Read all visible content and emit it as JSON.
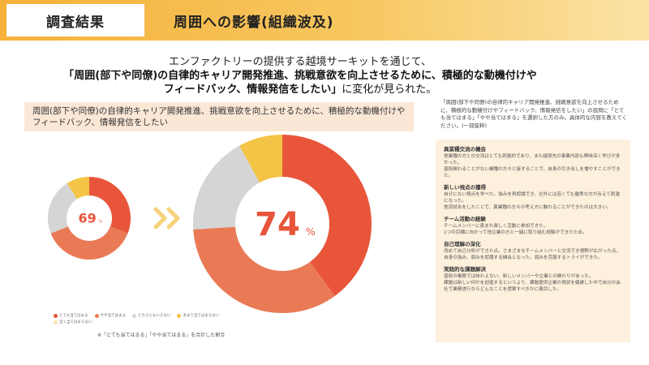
{
  "header": {
    "tag": "調査結果",
    "title": "周囲への影響(組織波及)"
  },
  "lead": {
    "line1": "エンファクトリーの提供する越境サーキットを通じて、",
    "line2": "「周囲(部下や同僚)の自律的キャリア開発推進、挑戦意欲を向上させるために、積極的な動機付けや",
    "line3": "フィードバック、情報発信をしたい」",
    "line3_tail": "に変化が見られた。"
  },
  "question": {
    "text": "周囲(部下や同僚)の自律的キャリア開発推進、挑戦意欲を向上させるために、積極的な動機付けやフィードバック、情報発信をしたい"
  },
  "colors": {
    "strong": "#e8553a",
    "somewhat": "#ea7a56",
    "neutral": "#d5d5d5",
    "little": "#f3c445",
    "none": "#fae3a6",
    "arrow": "#f6d27a",
    "value_text": "#e8553a"
  },
  "chart_data": {
    "type": "pie",
    "categories": [
      "とても当てはまる",
      "やや当てはまる",
      "どちらともいえない",
      "あまり当てはまらない",
      "全く当てはまらない"
    ],
    "series": [
      {
        "values": [
          31,
          38,
          22,
          9,
          0
        ]
      },
      {
        "values": [
          40,
          34,
          18,
          8,
          0
        ]
      }
    ],
    "labels": [
      "69",
      "74"
    ],
    "label_unit": "%",
    "legend": "bottom-left"
  },
  "footnote": "※「とても当てはまる」「やや当てはまる」を合計した割合",
  "right_question": "「周囲(部下や同僚)の自律的キャリア開発推進、挑戦意欲を向上させるために、積極的な動機付けやフィードバック、情報発信をしたい」の設問に「とても当てはまる」「やや当てはまる」を選択した方のみ。具体的な内容を教えてください。(一部抜粋)",
  "answers": [
    {
      "heading": "異業種交流の機会",
      "lines": [
        "他業種の方との交流はとても刺激的であり、また越境先の事業内容も興味深く学びが多かった。",
        "普段関わることがない業種の方々と接することで、自身の引き出しを増やすことができた。"
      ]
    },
    {
      "heading": "新しい視点の獲得",
      "lines": [
        "自分にない視点を学べた。強みを再認識でき、社外には若くても優秀な方がみえて刺激になった。",
        "他流試合をしたことで、異業種の方々の考え方に触れることができたのは大きい。"
      ]
    },
    {
      "heading": "チーム活動の経験",
      "lines": [
        "チームメンバーに恵まれ楽しく活動に参加できた。",
        "1つの目標に向かって他企業の方と一緒に取り組む経験ができたため。"
      ]
    },
    {
      "heading": "自己理解の深化",
      "lines": [
        "改めて自己分析ができた点。さまざまなチームメンバーと交流でき視野が広がった点。",
        "自身の強み、弱みを認識する機会となった。弱みを克服するトライができた。"
      ]
    },
    {
      "heading": "実践的な課題解決",
      "lines": [
        "普段の業務では味わえない、新しいメンバーや企業との関わりがあった。",
        "課題は新しい何かを創造するというより、課題提供企業の現状を顧慮した中で自分の会社で業務遂行ならどんなことを提案すべきかに着目した。"
      ]
    }
  ]
}
